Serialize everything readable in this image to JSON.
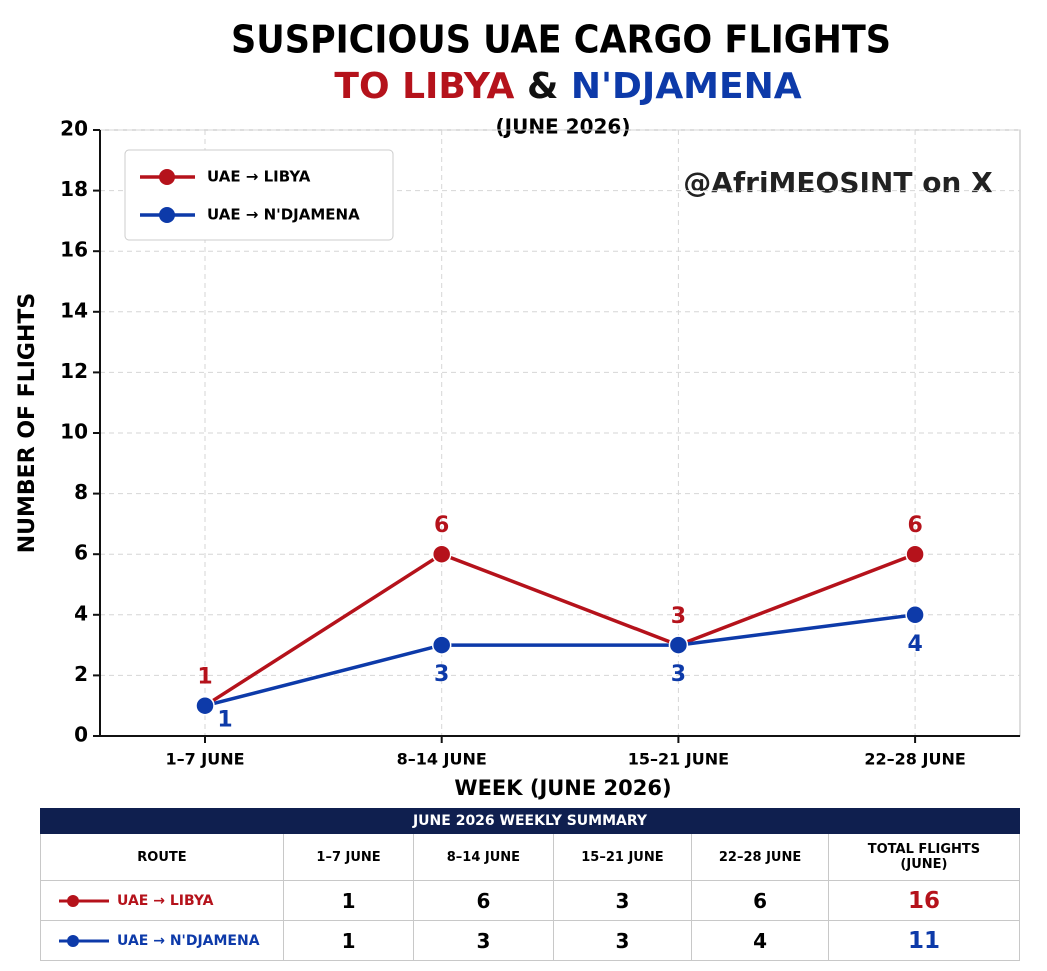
{
  "chart_data": {
    "type": "line",
    "title": "SUSPICIOUS UAE CARGO FLIGHTS",
    "subtitle": [
      "TO LIBYA",
      "&",
      "N'DJAMENA"
    ],
    "period": "(JUNE 2026)",
    "watermark": "@AfriMEOSINT on X",
    "xlabel": "WEEK (JUNE 2026)",
    "ylabel": "NUMBER OF FLIGHTS",
    "categories": [
      "1–7 JUNE",
      "8–14 JUNE",
      "15–21 JUNE",
      "22–28 JUNE"
    ],
    "series": [
      {
        "name": "UAE → LIBYA",
        "color": "#b5121b",
        "values": [
          1,
          6,
          3,
          6
        ]
      },
      {
        "name": "UAE → N'DJAMENA",
        "color": "#0d3aa9",
        "values": [
          1,
          3,
          3,
          4
        ]
      }
    ],
    "ylim": [
      0,
      20
    ],
    "yticks": [
      0,
      2,
      4,
      6,
      8,
      10,
      12,
      14,
      16,
      18,
      20
    ],
    "grid": true,
    "legend": "upper left"
  },
  "table": {
    "title": "JUNE 2026 WEEKLY SUMMARY",
    "header": [
      "ROUTE",
      "1–7 JUNE",
      "8–14 JUNE",
      "15–21 JUNE",
      "22–28 JUNE",
      "TOTAL FLIGHTS (JUNE)"
    ],
    "rows": [
      [
        "UAE → LIBYA",
        1,
        6,
        3,
        6,
        16
      ],
      [
        "UAE → N'DJAMENA",
        1,
        3,
        3,
        4,
        11
      ]
    ]
  }
}
